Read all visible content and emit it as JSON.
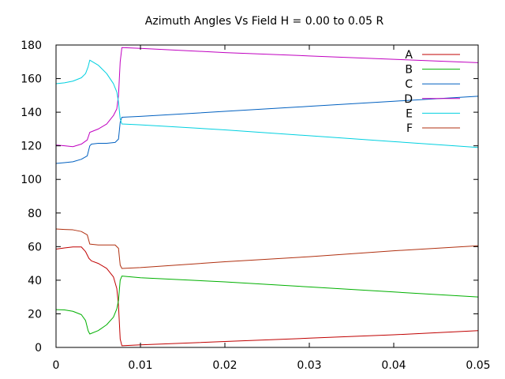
{
  "chart_data": {
    "type": "line",
    "title": "Azimuth Angles Vs Field H = 0.00 to 0.05 R",
    "xlabel": "",
    "ylabel": "",
    "xlim": [
      0,
      0.05
    ],
    "ylim": [
      0,
      180
    ],
    "x_ticks": [
      0,
      0.01,
      0.02,
      0.03,
      0.04,
      0.05
    ],
    "x_tick_labels": [
      "0",
      "0.01",
      "0.02",
      "0.03",
      "0.04",
      "0.05"
    ],
    "y_ticks": [
      0,
      20,
      40,
      60,
      80,
      100,
      120,
      140,
      160,
      180
    ],
    "y_tick_labels": [
      "0",
      "20",
      "40",
      "60",
      "80",
      "100",
      "120",
      "140",
      "160",
      "180"
    ],
    "grid": false,
    "legend_position": "top-right",
    "series": [
      {
        "name": "A",
        "color": "#c00000",
        "points": [
          [
            0,
            58.5
          ],
          [
            0.001,
            59.2
          ],
          [
            0.002,
            59.8
          ],
          [
            0.003,
            59.8
          ],
          [
            0.0035,
            57
          ],
          [
            0.0039,
            53
          ],
          [
            0.0042,
            51.5
          ],
          [
            0.005,
            50
          ],
          [
            0.006,
            47
          ],
          [
            0.0068,
            42
          ],
          [
            0.0072,
            35
          ],
          [
            0.0074,
            25
          ],
          [
            0.0076,
            5
          ],
          [
            0.0078,
            1
          ],
          [
            0.01,
            1.5
          ],
          [
            0.02,
            3.5
          ],
          [
            0.03,
            5.5
          ],
          [
            0.04,
            7.5
          ],
          [
            0.05,
            10
          ]
        ]
      },
      {
        "name": "B",
        "color": "#00b000",
        "points": [
          [
            0,
            22.5
          ],
          [
            0.001,
            22.3
          ],
          [
            0.002,
            21.5
          ],
          [
            0.003,
            19.5
          ],
          [
            0.0035,
            16
          ],
          [
            0.0038,
            10
          ],
          [
            0.004,
            8
          ],
          [
            0.005,
            10
          ],
          [
            0.006,
            13.5
          ],
          [
            0.0068,
            18
          ],
          [
            0.0072,
            23
          ],
          [
            0.0074,
            28
          ],
          [
            0.0076,
            40
          ],
          [
            0.0078,
            42.5
          ],
          [
            0.01,
            41.5
          ],
          [
            0.02,
            39
          ],
          [
            0.03,
            36
          ],
          [
            0.04,
            33
          ],
          [
            0.05,
            30
          ]
        ]
      },
      {
        "name": "C",
        "color": "#0060c0",
        "points": [
          [
            0,
            109.5
          ],
          [
            0.001,
            110
          ],
          [
            0.002,
            110.5
          ],
          [
            0.003,
            112
          ],
          [
            0.0037,
            114
          ],
          [
            0.004,
            120
          ],
          [
            0.0042,
            121
          ],
          [
            0.005,
            121.5
          ],
          [
            0.006,
            121.5
          ],
          [
            0.007,
            122
          ],
          [
            0.0074,
            124
          ],
          [
            0.0076,
            134
          ],
          [
            0.0078,
            137
          ],
          [
            0.01,
            137.5
          ],
          [
            0.02,
            140.5
          ],
          [
            0.03,
            143.5
          ],
          [
            0.04,
            146.5
          ],
          [
            0.05,
            149.5
          ]
        ]
      },
      {
        "name": "D",
        "color": "#c000c0",
        "points": [
          [
            0,
            120.5
          ],
          [
            0.001,
            120
          ],
          [
            0.002,
            119.5
          ],
          [
            0.003,
            121
          ],
          [
            0.0037,
            123.5
          ],
          [
            0.004,
            128
          ],
          [
            0.0045,
            129
          ],
          [
            0.005,
            130
          ],
          [
            0.006,
            133
          ],
          [
            0.0068,
            138
          ],
          [
            0.0072,
            142
          ],
          [
            0.0074,
            150
          ],
          [
            0.0076,
            170
          ],
          [
            0.0078,
            178.5
          ],
          [
            0.01,
            178
          ],
          [
            0.02,
            175.5
          ],
          [
            0.03,
            173.5
          ],
          [
            0.04,
            171.5
          ],
          [
            0.05,
            169.5
          ]
        ]
      },
      {
        "name": "E",
        "color": "#00d0e0",
        "points": [
          [
            0,
            157
          ],
          [
            0.001,
            157.5
          ],
          [
            0.002,
            158.5
          ],
          [
            0.003,
            160.5
          ],
          [
            0.0035,
            163
          ],
          [
            0.0038,
            167
          ],
          [
            0.004,
            171
          ],
          [
            0.005,
            168
          ],
          [
            0.006,
            163
          ],
          [
            0.0068,
            157
          ],
          [
            0.0072,
            152
          ],
          [
            0.0074,
            146
          ],
          [
            0.0076,
            136
          ],
          [
            0.0078,
            133
          ],
          [
            0.01,
            132.5
          ],
          [
            0.02,
            129.5
          ],
          [
            0.03,
            126
          ],
          [
            0.04,
            122.5
          ],
          [
            0.05,
            119
          ]
        ]
      },
      {
        "name": "F",
        "color": "#b03010",
        "points": [
          [
            0,
            70.5
          ],
          [
            0.001,
            70.2
          ],
          [
            0.002,
            70
          ],
          [
            0.003,
            69
          ],
          [
            0.0037,
            67
          ],
          [
            0.004,
            61.5
          ],
          [
            0.005,
            61
          ],
          [
            0.006,
            61
          ],
          [
            0.007,
            61
          ],
          [
            0.0074,
            59
          ],
          [
            0.0076,
            49
          ],
          [
            0.0078,
            47
          ],
          [
            0.01,
            47.5
          ],
          [
            0.02,
            51
          ],
          [
            0.03,
            54
          ],
          [
            0.04,
            57.5
          ],
          [
            0.05,
            60.5
          ]
        ]
      }
    ]
  }
}
